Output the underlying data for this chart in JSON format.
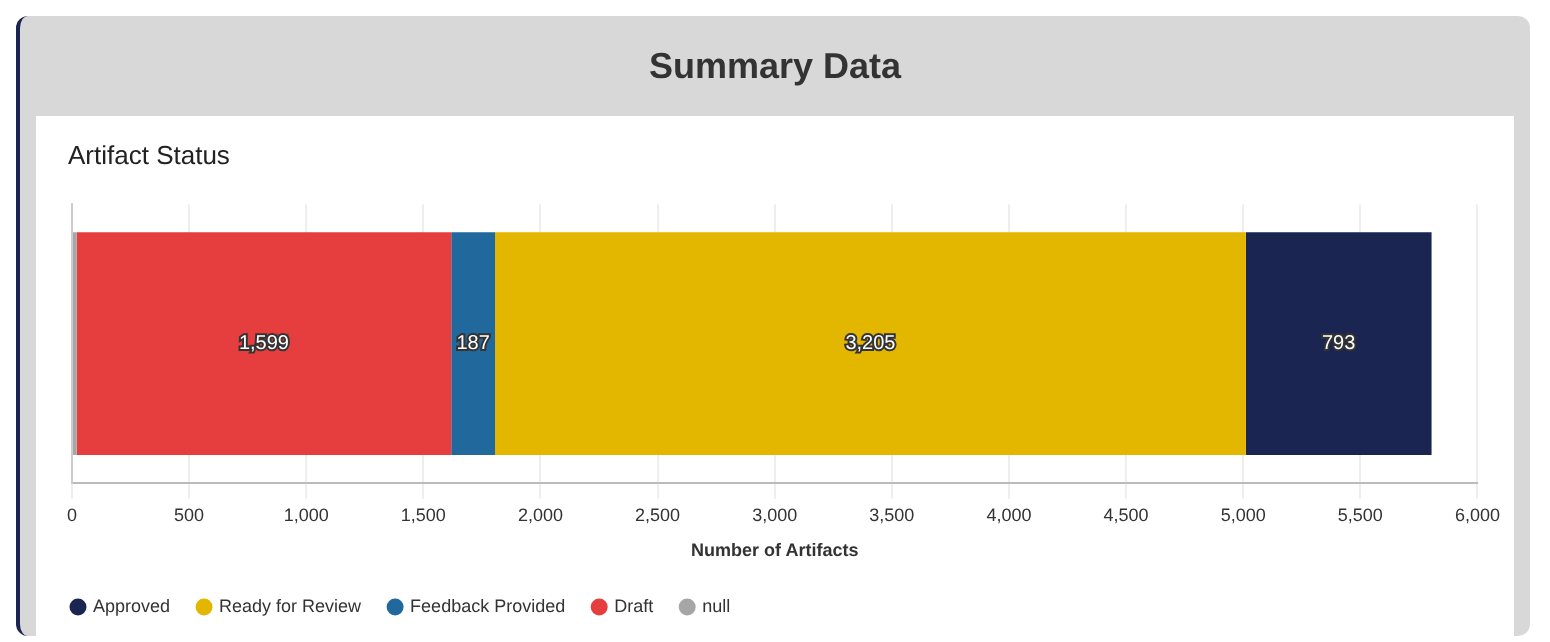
{
  "chart_data": {
    "type": "bar",
    "orientation": "horizontal",
    "stacked": true,
    "title": "Summary Data",
    "subtitle": "Artifact Status",
    "xlabel": "Number of Artifacts",
    "categories": [
      null
    ],
    "series": [
      {
        "name": "null",
        "color": "#a6a6a6",
        "values": [
          20
        ],
        "value_labels": [
          null
        ]
      },
      {
        "name": "Draft",
        "color": "#e63e3e",
        "values": [
          1599
        ],
        "value_labels": [
          "1,599"
        ]
      },
      {
        "name": "Feedback Provided",
        "color": "#21699c",
        "values": [
          187
        ],
        "value_labels": [
          "187"
        ]
      },
      {
        "name": "Ready for Review",
        "color": "#e3b600",
        "values": [
          3205
        ],
        "value_labels": [
          "3,205"
        ]
      },
      {
        "name": "Approved",
        "color": "#1a2551",
        "values": [
          793
        ],
        "value_labels": [
          "793"
        ]
      }
    ],
    "xlim": [
      0,
      6000
    ],
    "xticks": [
      0,
      500,
      {
        "value": 1000,
        "label": "1,000"
      },
      {
        "value": 1500,
        "label": "1,500"
      },
      {
        "value": 2000,
        "label": "2,000"
      },
      {
        "value": 2500,
        "label": "2,500"
      },
      {
        "value": 3000,
        "label": "3,000"
      },
      {
        "value": 3500,
        "label": "3,500"
      },
      {
        "value": 4000,
        "label": "4,000"
      },
      {
        "value": 4500,
        "label": "4,500"
      },
      {
        "value": 5000,
        "label": "5,000"
      },
      {
        "value": 5500,
        "label": "5,500"
      },
      {
        "value": 6000,
        "label": "6,000"
      }
    ],
    "grid": "x",
    "legend": "bottom"
  }
}
